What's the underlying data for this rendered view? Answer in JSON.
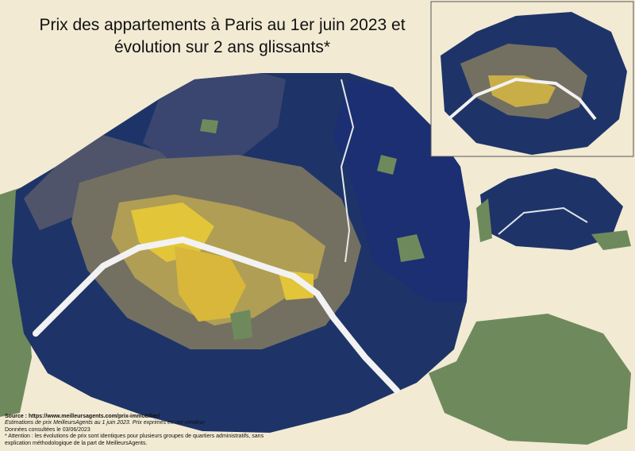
{
  "title_lines": [
    "Prix des appartements à Paris au 1er juin 2023 et",
    "évolution sur 2 ans glissants*"
  ],
  "notes": {
    "source": "Source : https://www.meilleursagents.com/prix-immobilier/",
    "estimation": "Estimations de prix MeilleursAgents au 1 juin 2023. Prix exprimés en net vendeur.",
    "consulted": "Données consultées le 03/06/2023",
    "warning": "* Attention : les évolutions de prix sont identiques pour plusieurs groupes de quartiers administratifs, sans explication méthodologique de la part de MeilleursAgents."
  }
}
